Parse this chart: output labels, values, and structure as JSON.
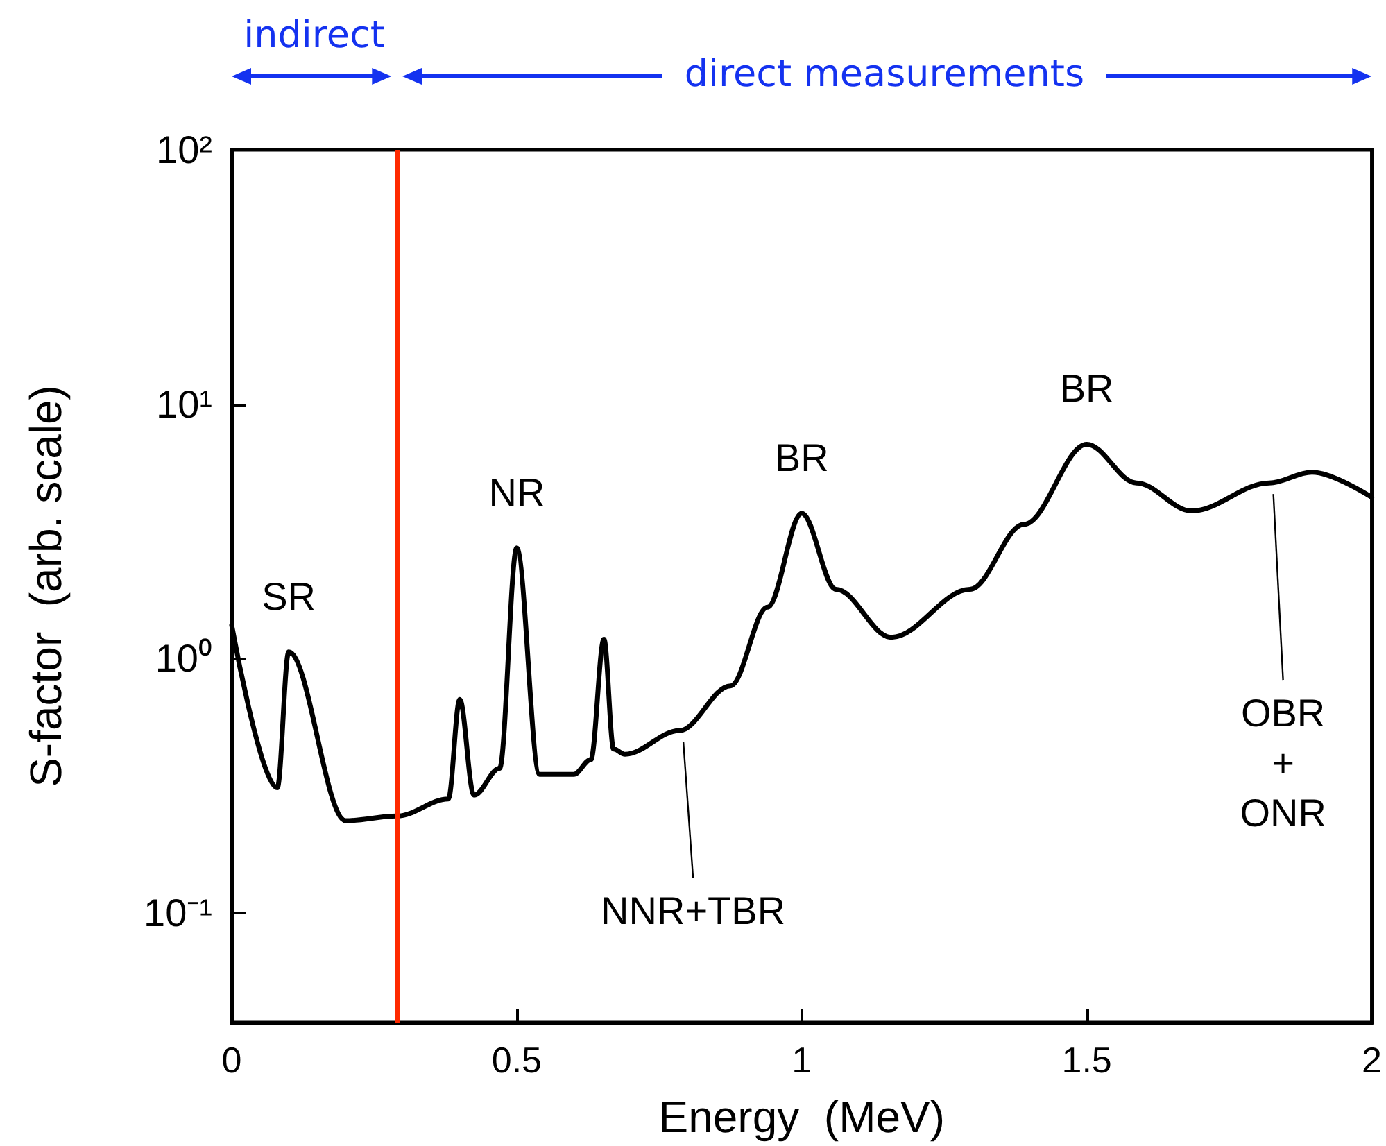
{
  "chart_data": {
    "type": "line",
    "xlabel": "Energy  (MeV)",
    "ylabel": "S-factor  (arb. scale)",
    "x": [
      0,
      0.08,
      0.1,
      0.2,
      0.29,
      0.38,
      0.4,
      0.425,
      0.47,
      0.5,
      0.54,
      0.6,
      0.63,
      0.653,
      0.67,
      0.69,
      0.785,
      0.875,
      0.94,
      1.0,
      1.06,
      1.157,
      1.295,
      1.39,
      1.5,
      1.587,
      1.684,
      1.82,
      1.895,
      2.0
    ],
    "series": [
      {
        "color": "#000000",
        "values": [
          1.35,
          0.31,
          1.06,
          0.23,
          0.24,
          0.28,
          0.69,
          0.29,
          0.37,
          2.72,
          0.35,
          0.35,
          0.4,
          1.19,
          0.44,
          0.42,
          0.52,
          0.78,
          1.59,
          3.72,
          1.87,
          1.21,
          1.87,
          3.37,
          6.95,
          4.9,
          3.8,
          4.9,
          5.4,
          4.3
        ]
      }
    ],
    "log": "y",
    "xlim": [
      0,
      2
    ],
    "xticks": [
      0,
      0.5,
      1,
      1.5,
      2
    ],
    "ylim": [
      0.037,
      100
    ],
    "yticks": [
      {
        "value": 0.1,
        "label": "10⁻¹"
      },
      {
        "value": 1,
        "label": "10⁰"
      },
      {
        "value": 10,
        "label": "10¹"
      },
      {
        "value": 100,
        "label": "10²"
      }
    ],
    "grid": false,
    "marker": "none",
    "line_style": "solid",
    "ref_lines": [
      {
        "axis": "x",
        "value": 0.29,
        "label": null,
        "color": "#ff2a00"
      }
    ],
    "annotations": [
      "indirect",
      "direct measurements",
      {
        "text": "SR",
        "x": 0.1,
        "y": 1.06
      },
      {
        "text": "NR",
        "x": 0.5,
        "y": 2.72
      },
      {
        "text": "BR",
        "x": 1.0,
        "y": 3.72
      },
      {
        "text": "BR",
        "x": 1.5,
        "y": 6.95
      },
      {
        "text": "NNR+TBR",
        "x": 0.785,
        "y": 0.52
      },
      {
        "text": "OBR\n+\nONR",
        "x": 1.82,
        "y": 4.9
      }
    ]
  }
}
